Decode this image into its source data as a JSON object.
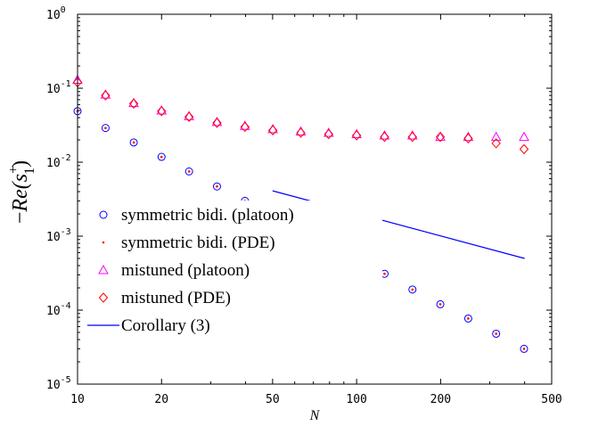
{
  "chart_data": {
    "type": "scatter",
    "title": "",
    "xlabel": "N",
    "ylabel": "−Re(s₁⁺)",
    "ylabel_parts": {
      "minus": "−",
      "re": "Re",
      "open": "(s",
      "sup": "+",
      "sub": "1",
      "close": ")"
    },
    "xscale": "log",
    "yscale": "log",
    "xlim": [
      10,
      500
    ],
    "ylim": [
      1e-05,
      1
    ],
    "grid": false,
    "legend_position": "lower-left",
    "xticks": [
      10,
      20,
      50,
      100,
      200,
      500
    ],
    "xtick_labels": [
      "10",
      "20",
      "50",
      "100",
      "200",
      "500"
    ],
    "yticks": [
      1e-05,
      0.0001,
      0.001,
      0.01,
      0.1,
      1
    ],
    "ytick_labels": [
      {
        "base": "10",
        "exp": "-5"
      },
      {
        "base": "10",
        "exp": "-4"
      },
      {
        "base": "10",
        "exp": "-3"
      },
      {
        "base": "10",
        "exp": "-2"
      },
      {
        "base": "10",
        "exp": "-1"
      },
      {
        "base": "10",
        "exp": "0"
      }
    ],
    "x": [
      10,
      12.6,
      15.9,
      20,
      25.1,
      31.6,
      39.8,
      50.1,
      63.1,
      79.4,
      100,
      125.9,
      158.5,
      199.5,
      251.2,
      316.2,
      398.1
    ],
    "series": [
      {
        "name": "symmetric bidi. (platoon)",
        "marker": "circle",
        "color": "#0000ff",
        "values": [
          0.049,
          0.029,
          0.0185,
          0.0118,
          0.0075,
          0.0047,
          0.003,
          0.0019,
          0.0012,
          0.00076,
          0.00048,
          0.00031,
          0.00019,
          0.00012,
          7.7e-05,
          4.8e-05,
          3e-05
        ]
      },
      {
        "name": "symmetric bidi. (PDE)",
        "marker": "dot",
        "color": "#ff0000",
        "values": [
          0.049,
          0.029,
          0.0185,
          0.0118,
          0.0075,
          0.0047,
          0.003,
          0.0019,
          0.0012,
          0.00076,
          0.00048,
          0.00031,
          0.00019,
          0.00012,
          7.7e-05,
          4.8e-05,
          3e-05
        ]
      },
      {
        "name": "mistuned (platoon)",
        "marker": "triangle",
        "color": "#ff00ff",
        "values": [
          0.13,
          0.082,
          0.063,
          0.05,
          0.042,
          0.035,
          0.031,
          0.028,
          0.026,
          0.025,
          0.024,
          0.023,
          0.023,
          0.022,
          0.022,
          0.022,
          0.022
        ]
      },
      {
        "name": "mistuned (PDE)",
        "marker": "diamond",
        "color": "#ff0000",
        "values": [
          0.12,
          0.08,
          0.062,
          0.049,
          0.041,
          0.034,
          0.03,
          0.027,
          0.025,
          0.024,
          0.023,
          0.022,
          0.022,
          0.022,
          0.021,
          0.018,
          0.015
        ]
      },
      {
        "name": "Corollary (3)",
        "marker": "line",
        "color": "#0000ff",
        "x": [
          50,
          400
        ],
        "values": [
          0.0041,
          0.0005
        ]
      }
    ]
  }
}
